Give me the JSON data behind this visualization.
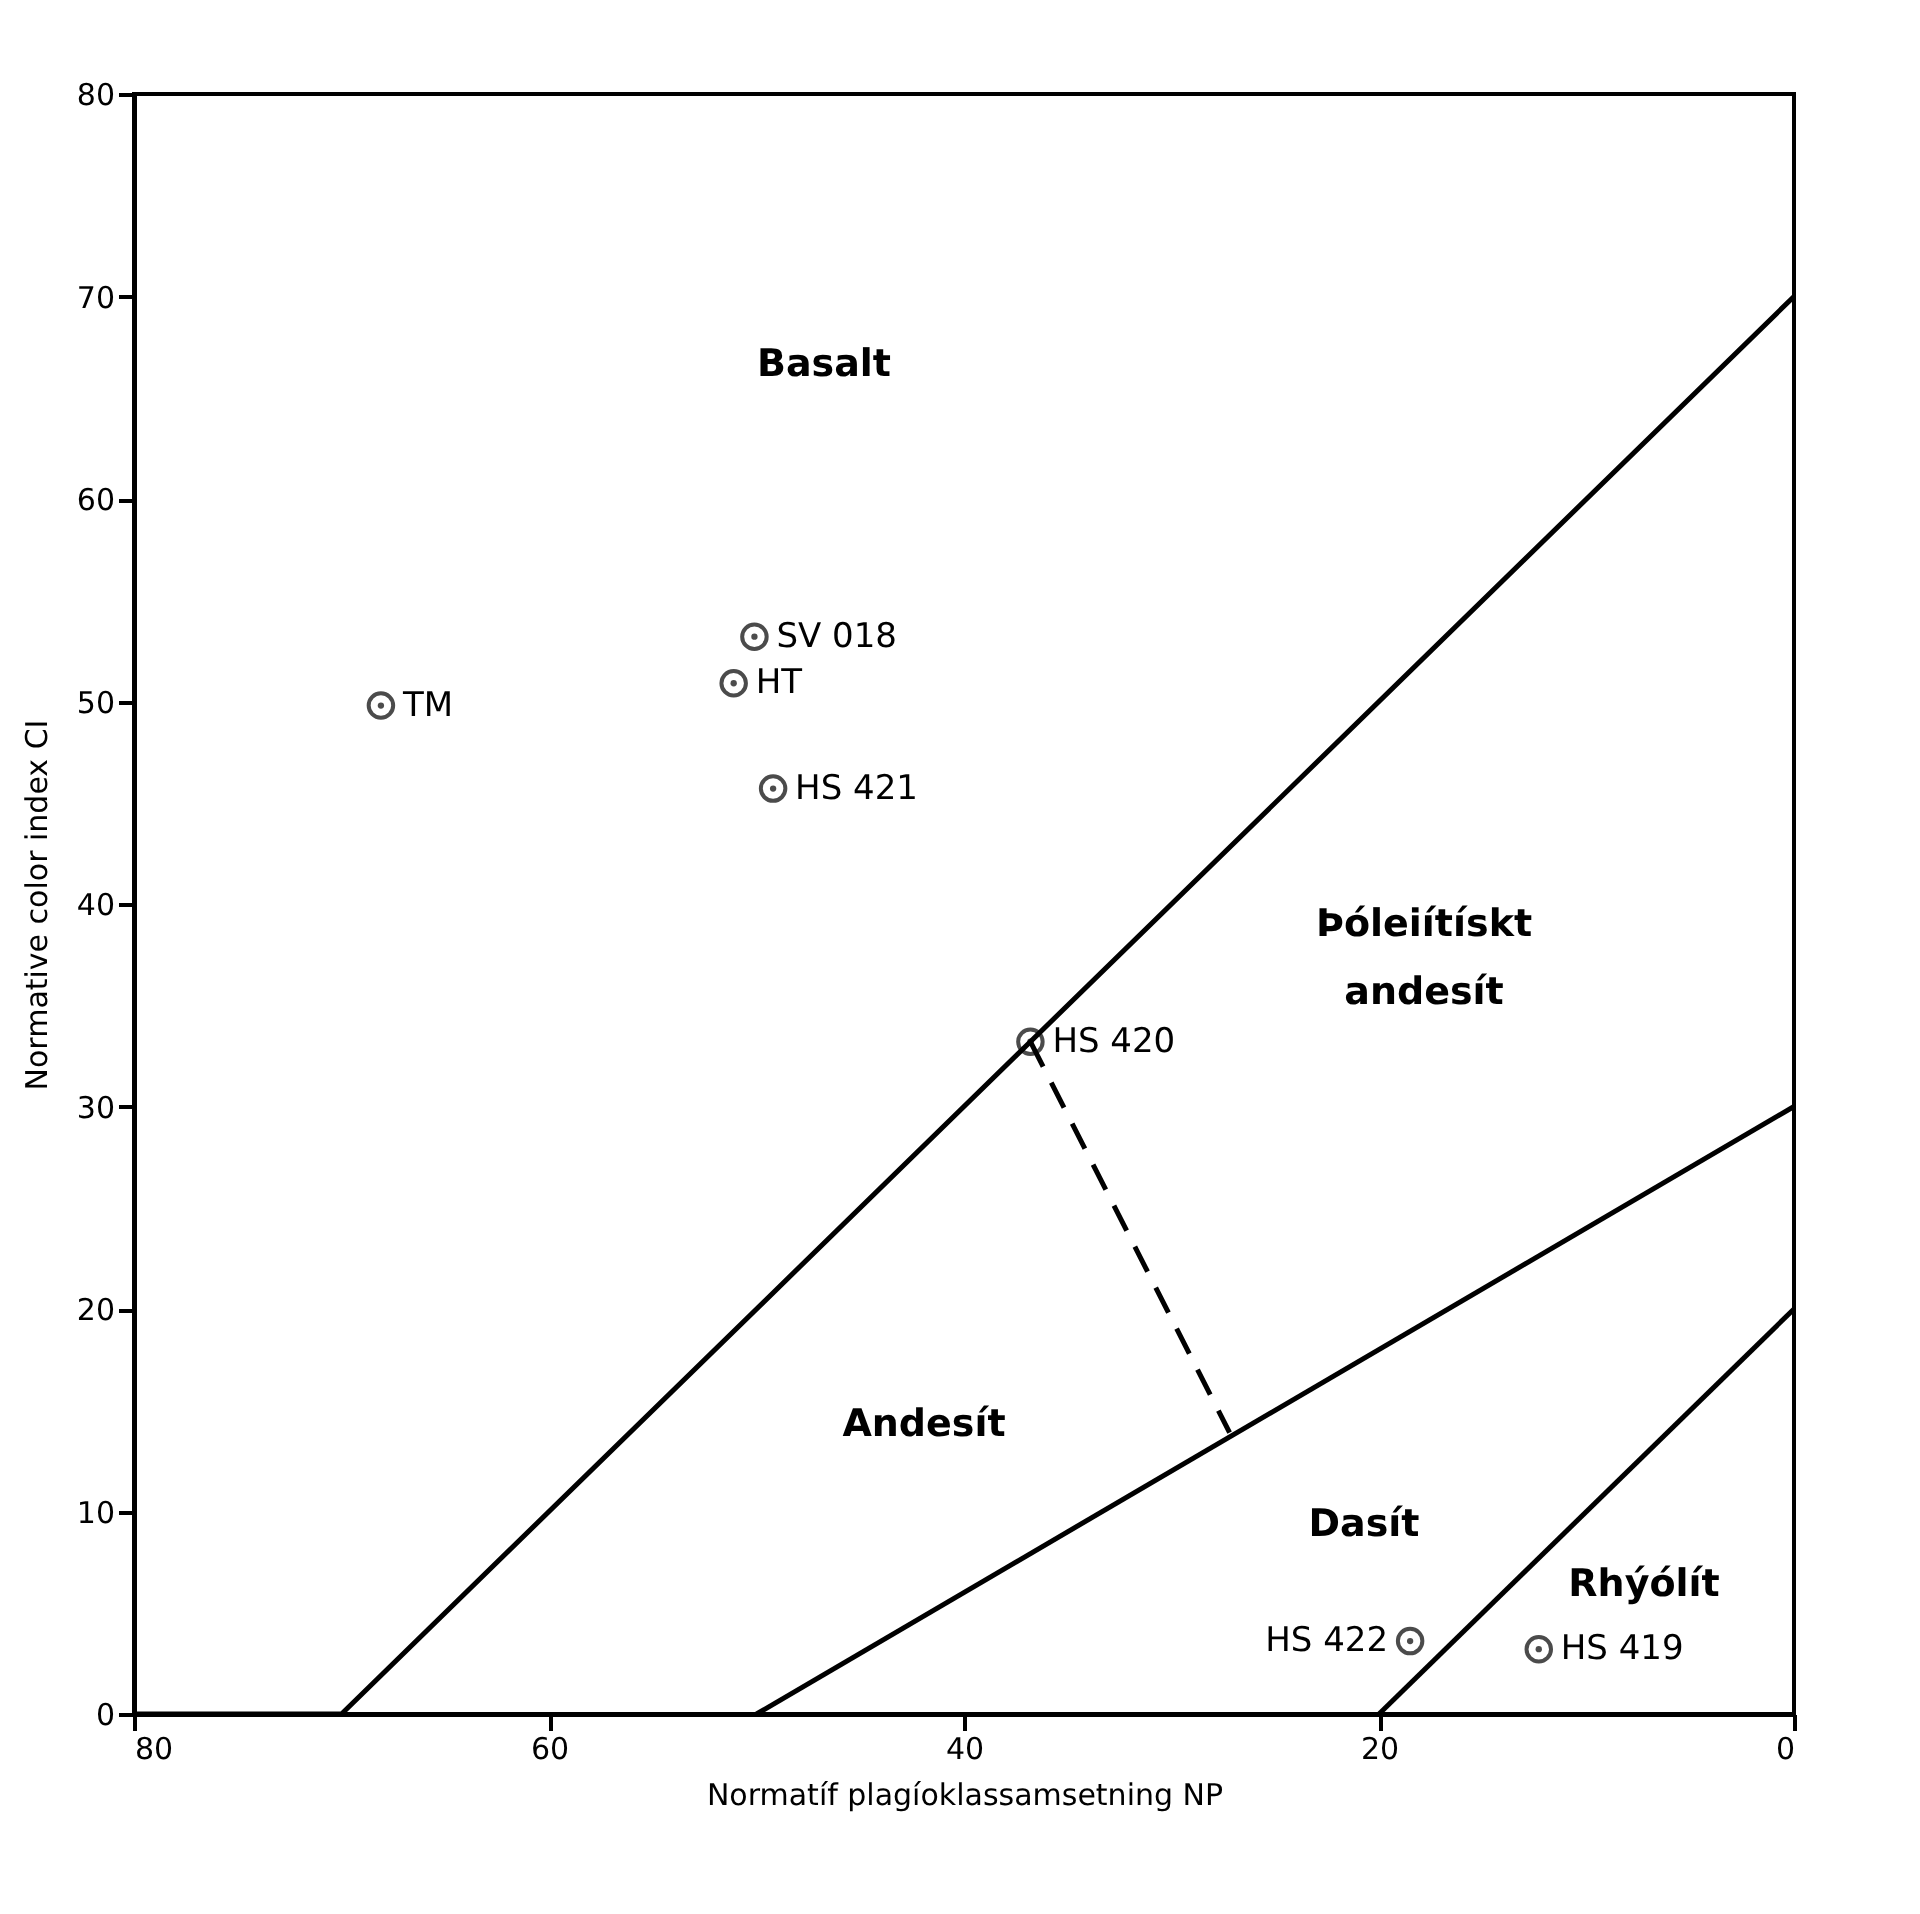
{
  "chart_data": {
    "type": "scatter",
    "xlabel": "Normatíf plagíoklassamsetning NP",
    "ylabel": "Normative color index CI",
    "xlim": [
      80,
      0
    ],
    "xticks": [
      80,
      60,
      40,
      20,
      0
    ],
    "ylim": [
      0,
      80
    ],
    "yticks": [
      0,
      10,
      20,
      30,
      40,
      50,
      60,
      70,
      80
    ],
    "grid": false,
    "marker": "circle",
    "series": [
      {
        "color": "#000000",
        "x": [
          68.1,
          50.1,
          51.1,
          49.2,
          36.8,
          18.5,
          12.3
        ],
        "values": [
          49.8,
          53.2,
          50.9,
          45.7,
          33.2,
          3.6,
          3.2
        ]
      },
      {
        "type": "line",
        "color": "#000000",
        "marker": "none",
        "line_style": "solid",
        "x": [
          80,
          70,
          0
        ],
        "values": [
          0,
          0,
          70
        ]
      },
      {
        "type": "line",
        "color": "#000000",
        "marker": "none",
        "line_style": "solid",
        "x": [
          50,
          0
        ],
        "values": [
          0,
          30
        ]
      },
      {
        "type": "line",
        "color": "#000000",
        "marker": "none",
        "line_style": "solid",
        "x": [
          20,
          0
        ],
        "values": [
          0,
          20
        ]
      },
      {
        "type": "line",
        "color": "#000000",
        "marker": "none",
        "line_style": "dashed",
        "x": [
          36.8,
          27.2
        ],
        "values": [
          33.2,
          13.9
        ]
      }
    ],
    "annotations": [
      {
        "text": "TM",
        "x": 68.1,
        "y": 49.8
      },
      {
        "text": "SV  018",
        "x": 50.1,
        "y": 53.2
      },
      {
        "text": "HT",
        "x": 51.1,
        "y": 50.9
      },
      {
        "text": "HS 421",
        "x": 49.2,
        "y": 45.7
      },
      {
        "text": "HS 420",
        "x": 36.8,
        "y": 33.2
      },
      {
        "text": "HS 422",
        "x": 18.5,
        "y": 3.6
      },
      {
        "text": "HS 419",
        "x": 12.3,
        "y": 3.2
      },
      "Basalt",
      "Þóleiítískt\nandesít",
      "Andesít",
      "Dasít",
      "Rhýólít"
    ]
  }
}
